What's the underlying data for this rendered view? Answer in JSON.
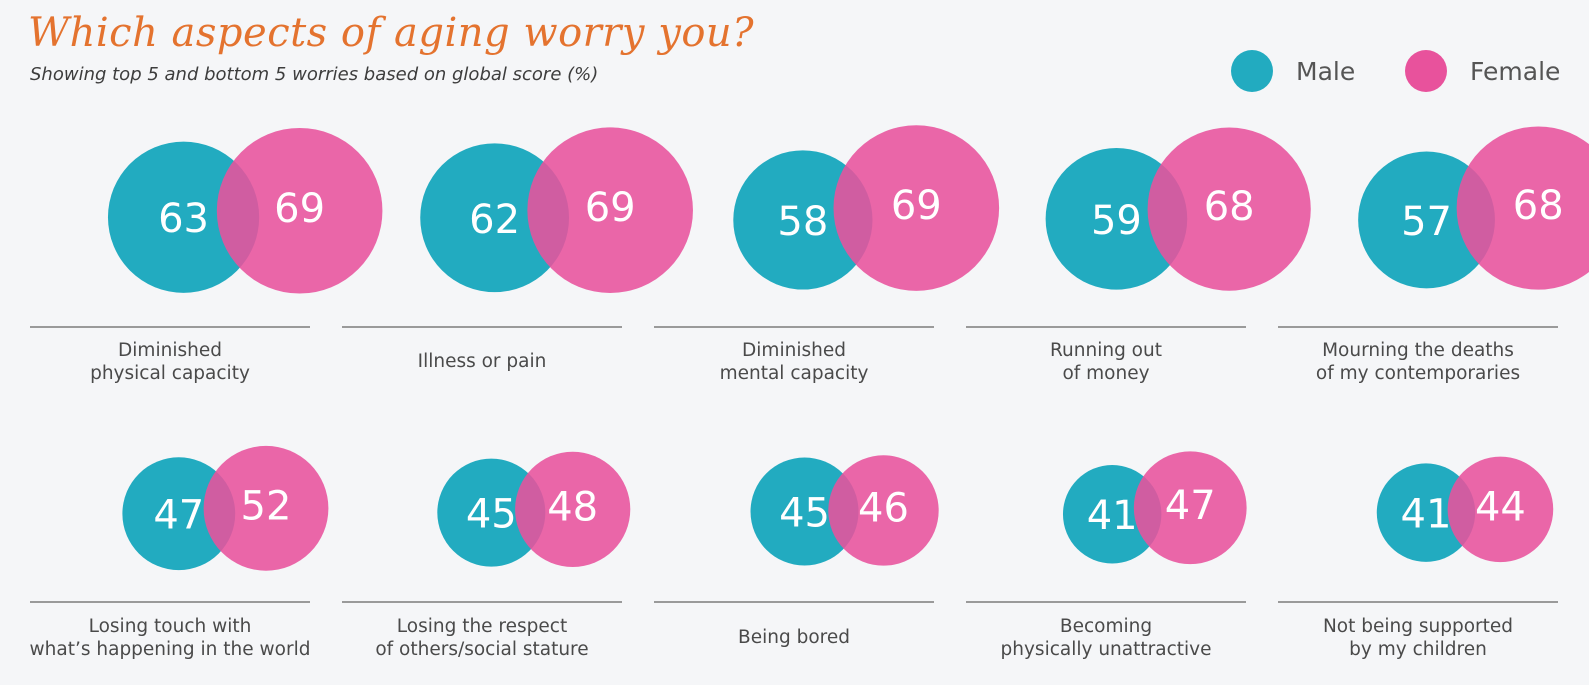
{
  "chart_data": {
    "type": "bubble-pairs",
    "title": "Which aspects of aging worry you?",
    "subtitle": "Showing top 5 and bottom 5 worries based on global score (%)",
    "legend": [
      {
        "name": "Male",
        "color": "#22abc0"
      },
      {
        "name": "Female",
        "color": "#e8529c"
      }
    ],
    "legend_position": "top-right",
    "categories": [
      {
        "label": [
          "Diminished",
          "physical capacity"
        ],
        "male": 63,
        "female": 69
      },
      {
        "label": [
          "Illness or pain"
        ],
        "male": 62,
        "female": 69
      },
      {
        "label": [
          "Diminished",
          "mental capacity"
        ],
        "male": 58,
        "female": 69
      },
      {
        "label": [
          "Running out",
          "of money"
        ],
        "male": 59,
        "female": 68
      },
      {
        "label": [
          "Mourning the deaths",
          "of my contemporaries"
        ],
        "male": 57,
        "female": 68
      },
      {
        "label": [
          "Losing touch with",
          "what’s happening in the world"
        ],
        "male": 47,
        "female": 52
      },
      {
        "label": [
          "Losing the respect",
          "of others/social stature"
        ],
        "male": 45,
        "female": 48
      },
      {
        "label": [
          "Being bored"
        ],
        "male": 45,
        "female": 46
      },
      {
        "label": [
          "Becoming",
          "physically unattractive"
        ],
        "male": 41,
        "female": 47
      },
      {
        "label": [
          "Not being supported",
          "by my children"
        ],
        "male": 41,
        "female": 44
      }
    ],
    "title_color": "#e4732f",
    "separator_color": "#9a9a9a"
  }
}
